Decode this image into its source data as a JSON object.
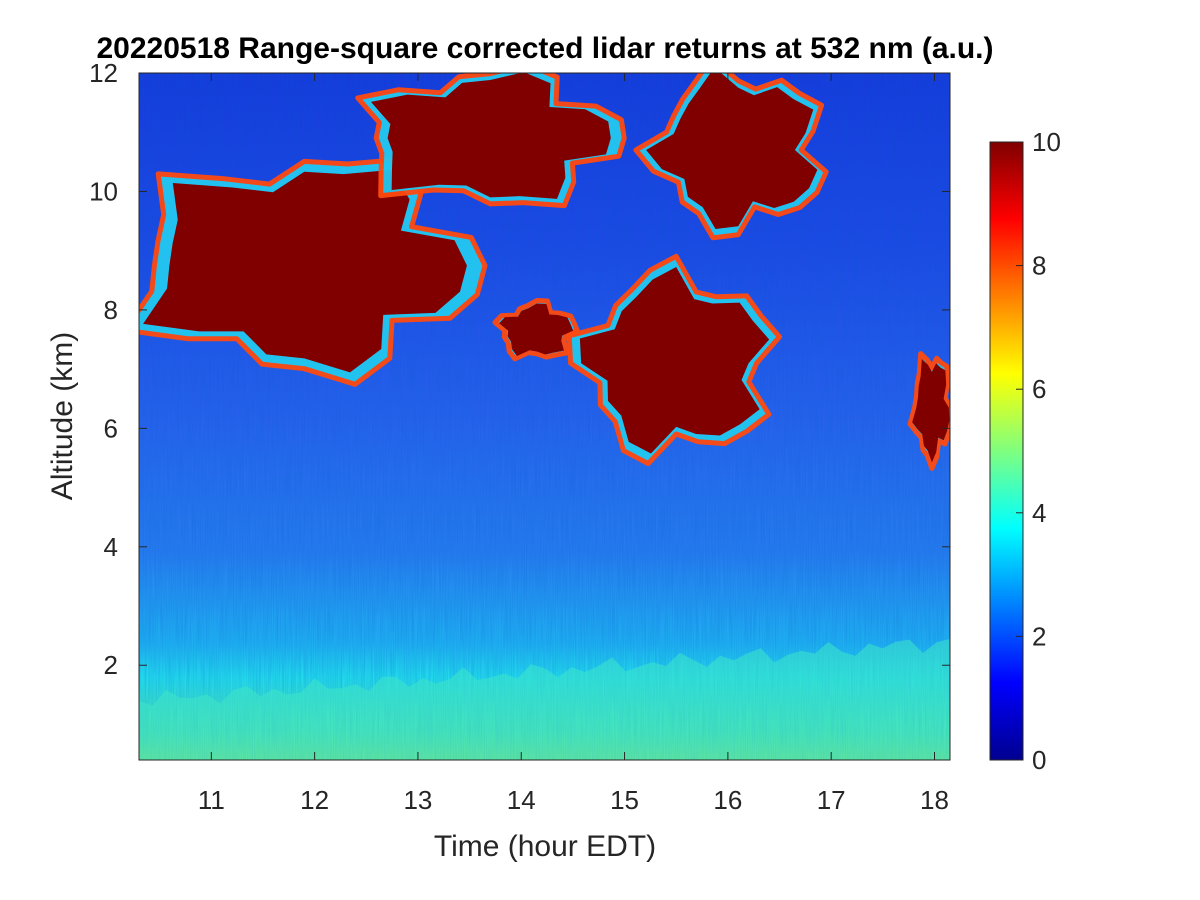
{
  "chart_data": {
    "type": "heatmap",
    "title": "20220518  Range-square corrected lidar returns at 532 nm (a.u.)",
    "xlabel": "Time (hour EDT)",
    "ylabel": "Altitude (km)",
    "xlim": [
      10.3,
      18.15
    ],
    "ylim": [
      0.4,
      12
    ],
    "xticks": [
      "11",
      "12",
      "13",
      "14",
      "15",
      "16",
      "17",
      "18"
    ],
    "yticks": [
      "2",
      "4",
      "6",
      "8",
      "10",
      "12"
    ],
    "colorbar": {
      "colormap": "jet",
      "range": [
        0,
        10
      ],
      "ticks": [
        "0",
        "2",
        "4",
        "6",
        "8",
        "10"
      ],
      "location": "right"
    },
    "features": [
      {
        "name": "boundary layer",
        "time_range": [
          10.3,
          18.15
        ],
        "top_altitude_km": [
          1.4,
          2.4
        ],
        "value_range": [
          4.5,
          5.5
        ]
      },
      {
        "name": "cloud layer",
        "time_range": [
          10.3,
          13.5
        ],
        "altitude_range_km": [
          7.0,
          10.5
        ],
        "value": 10
      },
      {
        "name": "cloud layer",
        "time_range": [
          12.5,
          14.9
        ],
        "altitude_range_km": [
          9.8,
          12.0
        ],
        "value": 10
      },
      {
        "name": "cloud layer",
        "time_range": [
          13.8,
          14.5
        ],
        "altitude_range_km": [
          7.2,
          8.1
        ],
        "value": 10
      },
      {
        "name": "cloud layer",
        "time_range": [
          14.6,
          16.4
        ],
        "altitude_range_km": [
          5.6,
          8.6
        ],
        "value": 10
      },
      {
        "name": "cloud layer",
        "time_range": [
          15.3,
          16.9
        ],
        "altitude_range_km": [
          9.4,
          12.0
        ],
        "value": 10
      },
      {
        "name": "cloud layer",
        "time_range": [
          17.8,
          18.15
        ],
        "altitude_range_km": [
          5.5,
          7.2
        ],
        "value": 10
      }
    ]
  }
}
